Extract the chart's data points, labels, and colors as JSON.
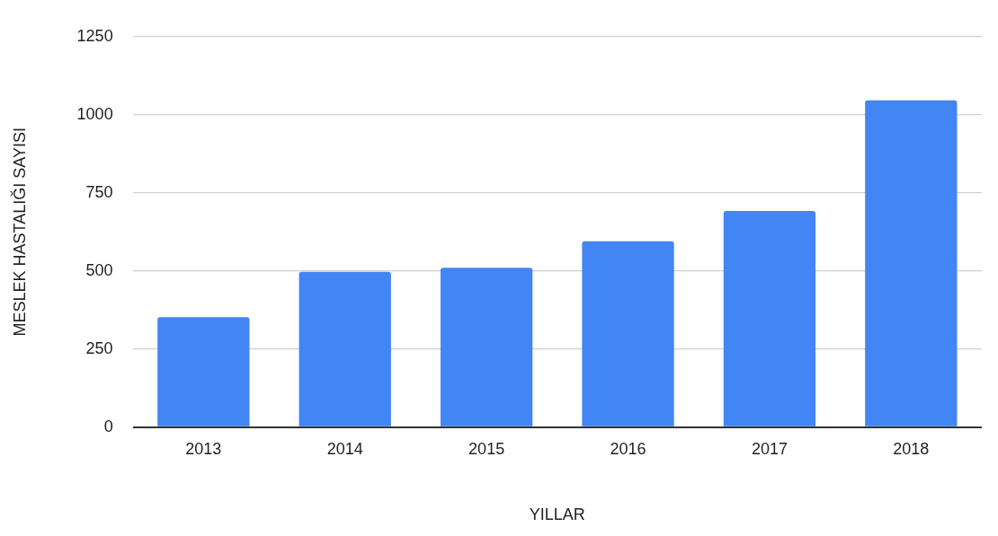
{
  "chart_data": {
    "type": "bar",
    "xlabel": "YILLAR",
    "ylabel": "MESLEK HASTALIĞI SAYISI",
    "categories": [
      "2013",
      "2014",
      "2015",
      "2016",
      "2017",
      "2018"
    ],
    "values": [
      352,
      497,
      510,
      595,
      692,
      1046
    ],
    "color": "#4285f4",
    "ylim": [
      0,
      1250
    ],
    "yticks": [
      0,
      250,
      500,
      750,
      1000,
      1250
    ],
    "grid": "y",
    "legend": false
  }
}
